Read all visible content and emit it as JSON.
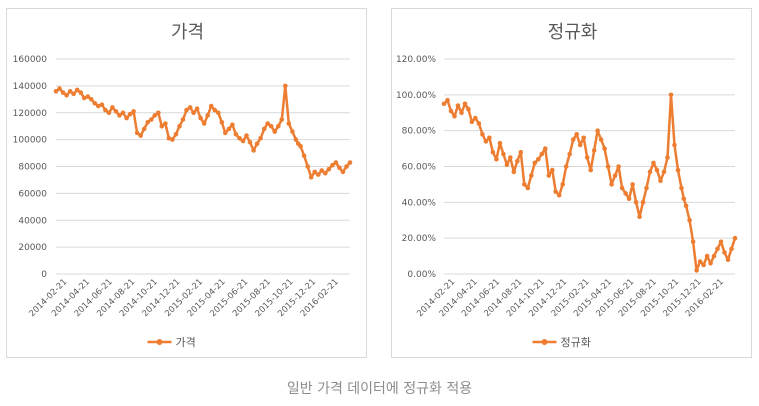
{
  "caption": "일반 가격 데이터에 정규화 적용",
  "colors": {
    "series": "#ED7D31",
    "grid": "#d9d9d9",
    "text": "#595959"
  },
  "chart_data": [
    {
      "type": "line",
      "title": "가격",
      "legend": "가격",
      "legend_position": "bottom",
      "xlabel": "",
      "ylabel": "",
      "grid": true,
      "ylim": [
        0,
        160000
      ],
      "yticks": [
        0,
        20000,
        40000,
        60000,
        80000,
        100000,
        120000,
        140000,
        160000
      ],
      "ytick_labels": [
        "0",
        "20000",
        "40000",
        "60000",
        "80000",
        "100000",
        "120000",
        "140000",
        "160000"
      ],
      "xticks": [
        "2014-02-21",
        "2014-04-21",
        "2014-06-21",
        "2014-08-21",
        "2014-10-21",
        "2014-12-21",
        "2015-02-21",
        "2015-04-21",
        "2015-06-21",
        "2015-08-21",
        "2015-10-21",
        "2015-12-21",
        "2016-02-21"
      ],
      "x_range": [
        0,
        25
      ],
      "x": [
        0,
        0.3,
        0.6,
        0.9,
        1.2,
        1.5,
        1.8,
        2.1,
        2.4,
        2.7,
        3.0,
        3.3,
        3.6,
        3.9,
        4.2,
        4.5,
        4.8,
        5.1,
        5.4,
        5.7,
        6.0,
        6.3,
        6.6,
        6.9,
        7.2,
        7.5,
        7.8,
        8.1,
        8.4,
        8.7,
        9.0,
        9.3,
        9.6,
        9.9,
        10.2,
        10.5,
        10.8,
        11.1,
        11.4,
        11.7,
        12.0,
        12.3,
        12.6,
        12.9,
        13.2,
        13.5,
        13.8,
        14.1,
        14.4,
        14.7,
        15.0,
        15.3,
        15.6,
        15.9,
        16.2,
        16.5,
        16.8,
        17.1,
        17.4,
        17.7,
        18.0,
        18.3,
        18.6,
        18.9,
        19.2,
        19.5,
        19.8,
        20.1,
        20.4,
        20.6,
        20.8,
        21.1,
        21.4,
        21.7,
        22.0,
        22.3,
        22.6,
        22.9,
        23.2,
        23.5,
        23.8,
        24.1,
        24.4,
        24.7,
        25.0
      ],
      "values": [
        136000,
        138000,
        135000,
        133000,
        136000,
        134000,
        137000,
        135000,
        131000,
        132000,
        130000,
        127000,
        125000,
        126000,
        122000,
        120000,
        124000,
        121000,
        118000,
        120000,
        116000,
        119000,
        121000,
        105000,
        103000,
        108000,
        113000,
        115000,
        118000,
        120000,
        110000,
        112000,
        101000,
        100000,
        104000,
        110000,
        115000,
        122000,
        124000,
        120000,
        123000,
        116000,
        112000,
        118000,
        125000,
        122000,
        120000,
        113000,
        105000,
        108000,
        111000,
        104000,
        101000,
        99000,
        103000,
        98000,
        92000,
        97000,
        101000,
        108000,
        112000,
        110000,
        106000,
        110000,
        115000,
        140000,
        112000,
        106000,
        100000,
        97000,
        95000,
        88000,
        80000,
        72000,
        76000,
        74000,
        77000,
        75000,
        78000,
        81000,
        83000,
        79000,
        76000,
        80000,
        83000
      ]
    },
    {
      "type": "line",
      "title": "정규화",
      "legend": "정규화",
      "legend_position": "bottom",
      "xlabel": "",
      "ylabel": "",
      "grid": true,
      "ylim": [
        0,
        1.2
      ],
      "yticks": [
        0,
        0.2,
        0.4,
        0.6,
        0.8,
        1.0,
        1.2
      ],
      "ytick_labels": [
        "0.00%",
        "20.00%",
        "40.00%",
        "60.00%",
        "80.00%",
        "100.00%",
        "120.00%"
      ],
      "xticks": [
        "2014-02-21",
        "2014-04-21",
        "2014-06-21",
        "2014-08-21",
        "2014-10-21",
        "2014-12-21",
        "2015-02-21",
        "2015-04-21",
        "2015-06-21",
        "2015-08-21",
        "2015-10-21",
        "2015-12-21",
        "2016-02-21"
      ],
      "x_range": [
        0,
        25
      ],
      "x": [
        0,
        0.3,
        0.6,
        0.9,
        1.2,
        1.5,
        1.8,
        2.1,
        2.4,
        2.7,
        3.0,
        3.3,
        3.6,
        3.9,
        4.2,
        4.5,
        4.8,
        5.1,
        5.4,
        5.7,
        6.0,
        6.3,
        6.6,
        6.9,
        7.2,
        7.5,
        7.8,
        8.1,
        8.4,
        8.7,
        9.0,
        9.3,
        9.6,
        9.9,
        10.2,
        10.5,
        10.8,
        11.1,
        11.4,
        11.7,
        12.0,
        12.3,
        12.6,
        12.9,
        13.2,
        13.5,
        13.8,
        14.1,
        14.4,
        14.7,
        15.0,
        15.3,
        15.6,
        15.9,
        16.2,
        16.5,
        16.8,
        17.1,
        17.4,
        17.7,
        18.0,
        18.3,
        18.6,
        18.9,
        19.2,
        19.5,
        19.8,
        20.1,
        20.4,
        20.6,
        20.8,
        21.1,
        21.4,
        21.7,
        22.0,
        22.3,
        22.6,
        22.9,
        23.2,
        23.5,
        23.8,
        24.1,
        24.4,
        24.7,
        25.0
      ],
      "values": [
        0.95,
        0.97,
        0.91,
        0.88,
        0.94,
        0.9,
        0.95,
        0.92,
        0.85,
        0.87,
        0.84,
        0.78,
        0.74,
        0.76,
        0.68,
        0.64,
        0.73,
        0.67,
        0.61,
        0.65,
        0.57,
        0.63,
        0.68,
        0.5,
        0.48,
        0.55,
        0.62,
        0.64,
        0.67,
        0.7,
        0.55,
        0.58,
        0.46,
        0.44,
        0.5,
        0.6,
        0.67,
        0.75,
        0.78,
        0.72,
        0.76,
        0.65,
        0.58,
        0.69,
        0.8,
        0.75,
        0.7,
        0.6,
        0.5,
        0.55,
        0.6,
        0.48,
        0.45,
        0.42,
        0.5,
        0.4,
        0.32,
        0.4,
        0.48,
        0.57,
        0.62,
        0.58,
        0.52,
        0.57,
        0.65,
        1.0,
        0.72,
        0.58,
        0.48,
        0.42,
        0.38,
        0.3,
        0.18,
        0.02,
        0.07,
        0.05,
        0.1,
        0.06,
        0.1,
        0.14,
        0.18,
        0.12,
        0.08,
        0.14,
        0.2
      ]
    }
  ]
}
